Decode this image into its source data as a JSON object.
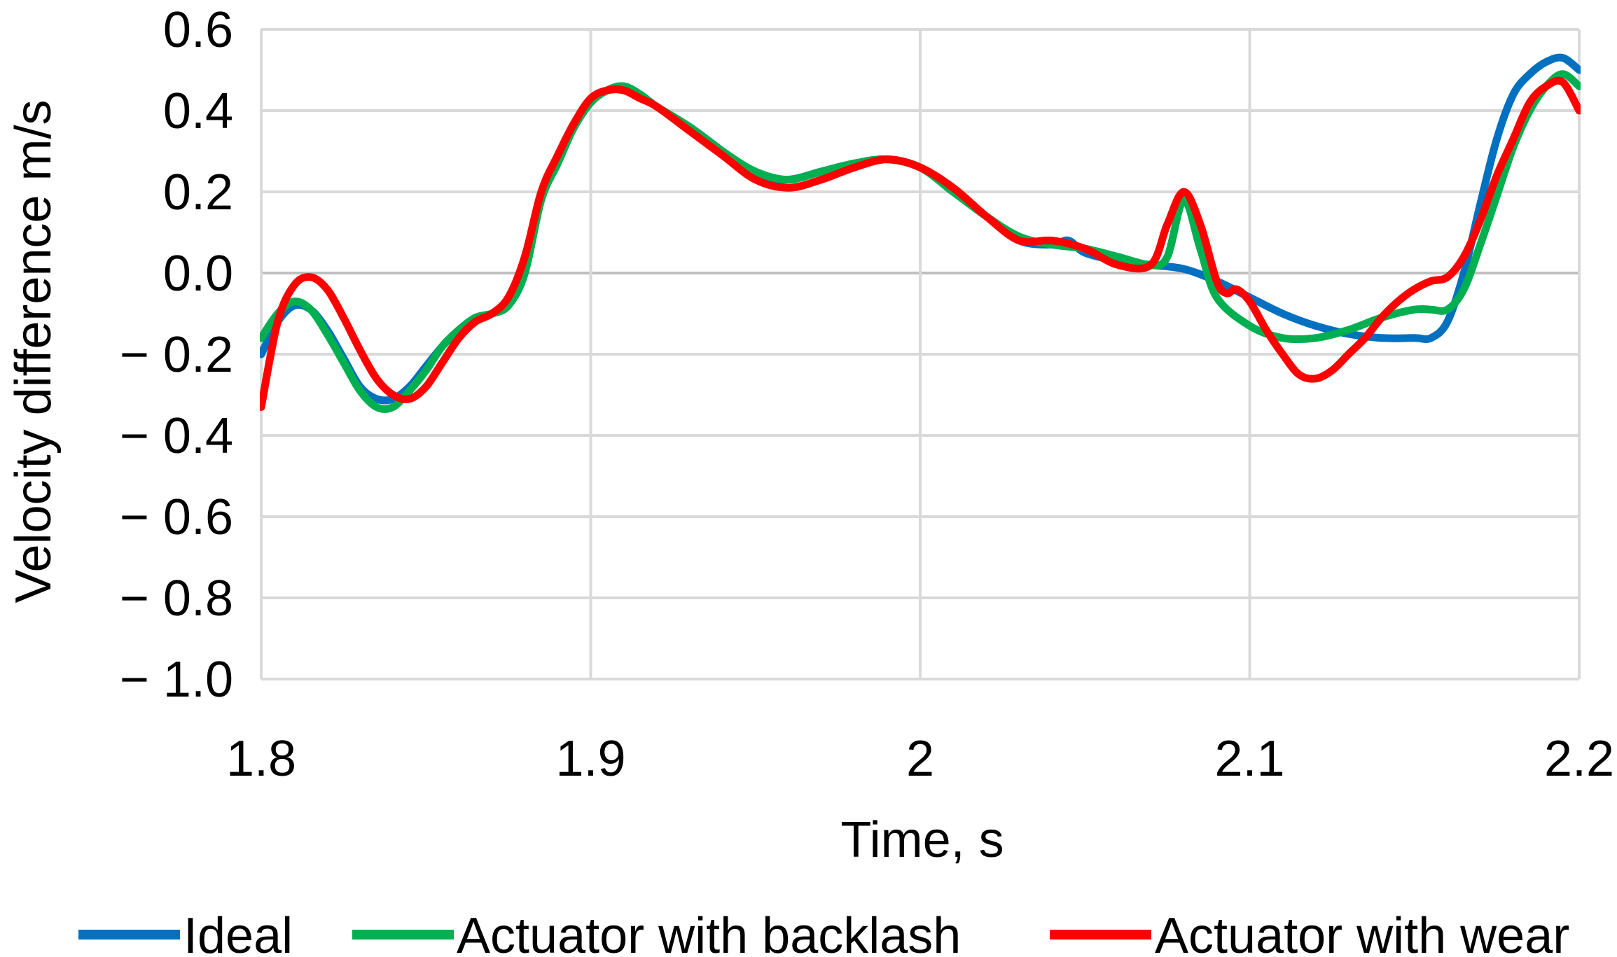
{
  "chart_data": {
    "type": "line",
    "title": "",
    "xlabel": "Time, s",
    "ylabel": "Velocity difference m/s",
    "xlim": [
      1.8,
      2.2
    ],
    "ylim": [
      -1.0,
      0.6
    ],
    "x_ticks": [
      {
        "value": 1.8,
        "label": "1.8"
      },
      {
        "value": 1.9,
        "label": "1.9"
      },
      {
        "value": 2.0,
        "label": "2"
      },
      {
        "value": 2.1,
        "label": "2.1"
      },
      {
        "value": 2.2,
        "label": "2.2"
      }
    ],
    "y_ticks": [
      {
        "value": 0.6,
        "label": "0.6"
      },
      {
        "value": 0.4,
        "label": "0.4"
      },
      {
        "value": 0.2,
        "label": "0.2"
      },
      {
        "value": 0.0,
        "label": "0.0"
      },
      {
        "value": -0.2,
        "label": "− 0.2"
      },
      {
        "value": -0.4,
        "label": "− 0.4"
      },
      {
        "value": -0.6,
        "label": "− 0.6"
      },
      {
        "value": -0.8,
        "label": "− 0.8"
      },
      {
        "value": -1.0,
        "label": "− 1.0"
      }
    ],
    "grid": true,
    "legend_position": "bottom",
    "series": [
      {
        "name": "Ideal",
        "color": "#0070C0",
        "x": [
          1.8,
          1.805,
          1.81,
          1.815,
          1.82,
          1.825,
          1.83,
          1.835,
          1.84,
          1.845,
          1.85,
          1.855,
          1.86,
          1.865,
          1.87,
          1.875,
          1.88,
          1.885,
          1.89,
          1.895,
          1.9,
          1.905,
          1.91,
          1.915,
          1.92,
          1.93,
          1.94,
          1.95,
          1.96,
          1.97,
          1.98,
          1.99,
          2.0,
          2.01,
          2.02,
          2.03,
          2.04,
          2.045,
          2.05,
          2.06,
          2.07,
          2.08,
          2.09,
          2.1,
          2.11,
          2.12,
          2.13,
          2.14,
          2.15,
          2.155,
          2.16,
          2.165,
          2.17,
          2.175,
          2.18,
          2.185,
          2.19,
          2.195,
          2.2
        ],
        "y": [
          -0.2,
          -0.12,
          -0.08,
          -0.09,
          -0.14,
          -0.21,
          -0.28,
          -0.31,
          -0.31,
          -0.28,
          -0.23,
          -0.18,
          -0.14,
          -0.11,
          -0.1,
          -0.08,
          0.0,
          0.19,
          0.28,
          0.36,
          0.42,
          0.45,
          0.46,
          0.44,
          0.41,
          0.36,
          0.3,
          0.24,
          0.23,
          0.25,
          0.27,
          0.28,
          0.26,
          0.2,
          0.14,
          0.08,
          0.07,
          0.08,
          0.05,
          0.03,
          0.02,
          0.01,
          -0.02,
          -0.06,
          -0.1,
          -0.13,
          -0.15,
          -0.16,
          -0.16,
          -0.16,
          -0.12,
          0.0,
          0.17,
          0.33,
          0.44,
          0.49,
          0.52,
          0.53,
          0.5
        ]
      },
      {
        "name": "Actuator with backlash",
        "color": "#00B050",
        "x": [
          1.8,
          1.805,
          1.81,
          1.815,
          1.82,
          1.825,
          1.83,
          1.835,
          1.84,
          1.845,
          1.85,
          1.855,
          1.86,
          1.865,
          1.87,
          1.875,
          1.88,
          1.885,
          1.89,
          1.895,
          1.9,
          1.905,
          1.91,
          1.915,
          1.92,
          1.93,
          1.94,
          1.95,
          1.96,
          1.97,
          1.98,
          1.99,
          2.0,
          2.01,
          2.02,
          2.03,
          2.04,
          2.05,
          2.06,
          2.07,
          2.075,
          2.08,
          2.085,
          2.09,
          2.1,
          2.11,
          2.12,
          2.13,
          2.14,
          2.15,
          2.155,
          2.16,
          2.165,
          2.17,
          2.175,
          2.18,
          2.185,
          2.19,
          2.195,
          2.2
        ],
        "y": [
          -0.16,
          -0.1,
          -0.07,
          -0.09,
          -0.15,
          -0.22,
          -0.29,
          -0.33,
          -0.33,
          -0.29,
          -0.24,
          -0.18,
          -0.14,
          -0.11,
          -0.1,
          -0.08,
          0.0,
          0.18,
          0.27,
          0.36,
          0.42,
          0.45,
          0.46,
          0.44,
          0.41,
          0.36,
          0.3,
          0.25,
          0.23,
          0.25,
          0.27,
          0.28,
          0.26,
          0.2,
          0.14,
          0.09,
          0.07,
          0.06,
          0.04,
          0.02,
          0.04,
          0.18,
          0.06,
          -0.06,
          -0.13,
          -0.16,
          -0.16,
          -0.14,
          -0.11,
          -0.09,
          -0.09,
          -0.09,
          -0.04,
          0.07,
          0.19,
          0.31,
          0.4,
          0.46,
          0.49,
          0.46
        ]
      },
      {
        "name": "Actuator with wear",
        "color": "#FF0000",
        "x": [
          1.8,
          1.805,
          1.81,
          1.815,
          1.82,
          1.825,
          1.83,
          1.835,
          1.84,
          1.845,
          1.85,
          1.855,
          1.86,
          1.865,
          1.87,
          1.875,
          1.88,
          1.885,
          1.89,
          1.895,
          1.9,
          1.905,
          1.91,
          1.915,
          1.92,
          1.93,
          1.94,
          1.95,
          1.96,
          1.97,
          1.98,
          1.99,
          2.0,
          2.01,
          2.02,
          2.03,
          2.04,
          2.05,
          2.06,
          2.07,
          2.075,
          2.08,
          2.085,
          2.09,
          2.093,
          2.096,
          2.1,
          2.105,
          2.11,
          2.115,
          2.12,
          2.125,
          2.13,
          2.135,
          2.14,
          2.145,
          2.15,
          2.155,
          2.16,
          2.165,
          2.17,
          2.175,
          2.18,
          2.185,
          2.19,
          2.195,
          2.2
        ],
        "y": [
          -0.33,
          -0.12,
          -0.03,
          -0.01,
          -0.04,
          -0.11,
          -0.19,
          -0.26,
          -0.3,
          -0.31,
          -0.28,
          -0.22,
          -0.16,
          -0.12,
          -0.1,
          -0.06,
          0.04,
          0.2,
          0.29,
          0.37,
          0.43,
          0.45,
          0.45,
          0.43,
          0.41,
          0.35,
          0.29,
          0.23,
          0.21,
          0.23,
          0.26,
          0.28,
          0.26,
          0.21,
          0.14,
          0.08,
          0.08,
          0.06,
          0.02,
          0.02,
          0.12,
          0.2,
          0.12,
          -0.02,
          -0.05,
          -0.04,
          -0.07,
          -0.14,
          -0.2,
          -0.25,
          -0.26,
          -0.24,
          -0.2,
          -0.16,
          -0.11,
          -0.07,
          -0.04,
          -0.02,
          -0.01,
          0.04,
          0.13,
          0.24,
          0.33,
          0.42,
          0.46,
          0.47,
          0.4
        ]
      }
    ]
  }
}
